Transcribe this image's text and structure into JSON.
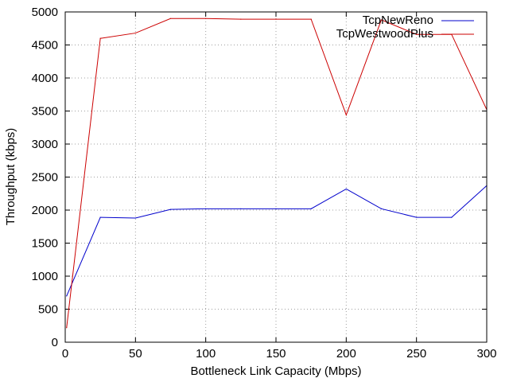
{
  "chart_data": {
    "type": "line",
    "xlabel": "Bottleneck Link Capacity (Mbps)",
    "ylabel": "Throughput (kbps)",
    "xlim": [
      0,
      300
    ],
    "ylim": [
      0,
      5000
    ],
    "x_ticks": [
      0,
      50,
      100,
      150,
      200,
      250,
      300
    ],
    "y_ticks": [
      0,
      500,
      1000,
      1500,
      2000,
      2500,
      3000,
      3500,
      4000,
      4500,
      5000
    ],
    "grid": true,
    "legend_position": "top-right",
    "series": [
      {
        "name": "TcpNewReno",
        "color": "#0000cc",
        "x": [
          1,
          25,
          50,
          75,
          100,
          125,
          150,
          175,
          200,
          225,
          250,
          275,
          300
        ],
        "values": [
          700,
          1890,
          1880,
          2010,
          2020,
          2020,
          2020,
          2020,
          2320,
          2020,
          1890,
          1890,
          2370
        ]
      },
      {
        "name": "TcpWestwoodPlus",
        "color": "#cc0000",
        "x": [
          1,
          25,
          50,
          75,
          100,
          125,
          150,
          175,
          200,
          225,
          250,
          275,
          300
        ],
        "values": [
          220,
          4600,
          4680,
          4900,
          4900,
          4890,
          4890,
          4890,
          3440,
          4880,
          4660,
          4660,
          3520
        ]
      }
    ]
  }
}
